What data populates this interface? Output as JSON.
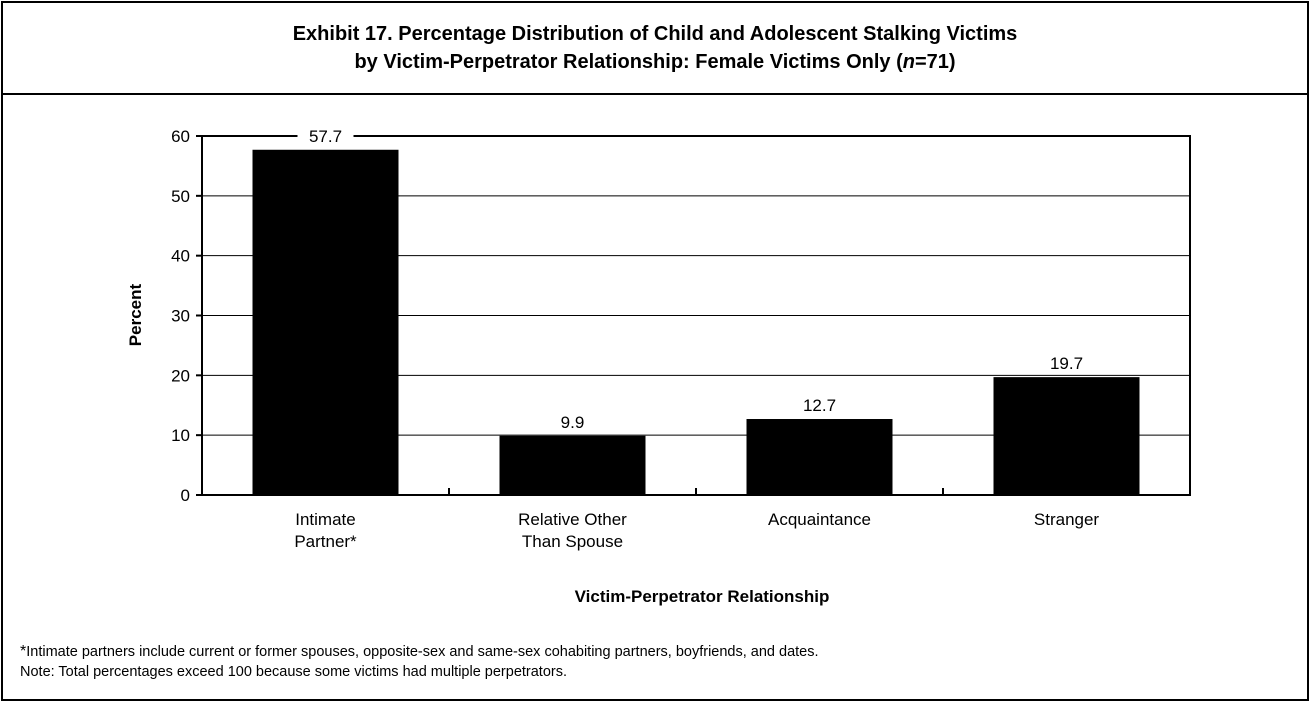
{
  "chart_data": {
    "type": "bar",
    "title_line1": "Exhibit 17. Percentage Distribution of Child and Adolescent Stalking Victims",
    "title_line2_prefix": "by Victim-Perpetrator Relationship: Female Victims Only (",
    "title_n": "n",
    "title_line2_suffix": "=71)",
    "categories": [
      [
        "Intimate",
        "Partner*"
      ],
      [
        "Relative Other",
        "Than Spouse"
      ],
      [
        "Acquaintance"
      ],
      [
        "Stranger"
      ]
    ],
    "values": [
      57.7,
      9.9,
      12.7,
      19.7
    ],
    "value_labels": [
      "57.7",
      "9.9",
      "12.7",
      "19.7"
    ],
    "xlabel": "Victim-Perpetrator Relationship",
    "ylabel": "Percent",
    "ylim": [
      0,
      60
    ],
    "yticks": [
      0,
      10,
      20,
      30,
      40,
      50,
      60
    ],
    "ytick_labels": [
      "0",
      "10",
      "20",
      "30",
      "40",
      "50",
      "60"
    ],
    "grid": true,
    "bar_color": "#000000"
  },
  "footnotes": {
    "star": "*",
    "line1": "Intimate partners include current or former spouses, opposite-sex and same-sex cohabiting partners, boyfriends, and dates.",
    "line2": "Note: Total percentages exceed 100 because some victims had multiple perpetrators."
  }
}
